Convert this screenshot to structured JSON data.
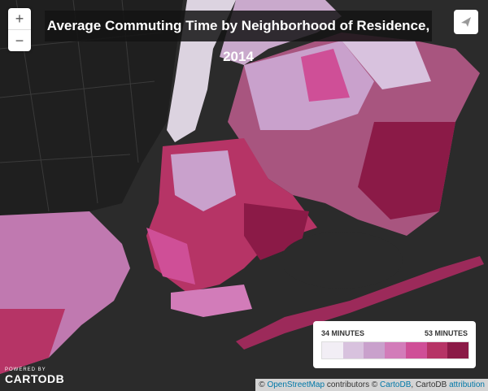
{
  "header": {
    "title": "Average Commuting Time by Neighborhood of Residence, 2014"
  },
  "zoom": {
    "in": "+",
    "out": "−"
  },
  "legend": {
    "min_label": "34 MINUTES",
    "max_label": "53 MINUTES",
    "colors": [
      "#f2eef5",
      "#d8c2de",
      "#c9a1cc",
      "#d27cb9",
      "#cf4f97",
      "#b63466",
      "#8b1a47"
    ]
  },
  "logo": {
    "powered": "POWERED BY",
    "brand": "CARTODB"
  },
  "attribution": {
    "osm_prefix": "©",
    "osm_link": "OpenStreetMap",
    "osm_suffix": "contributors ©",
    "carto_link": "CartoDB",
    "carto_suffix": ", CartoDB",
    "attr_link": "attribution"
  }
}
